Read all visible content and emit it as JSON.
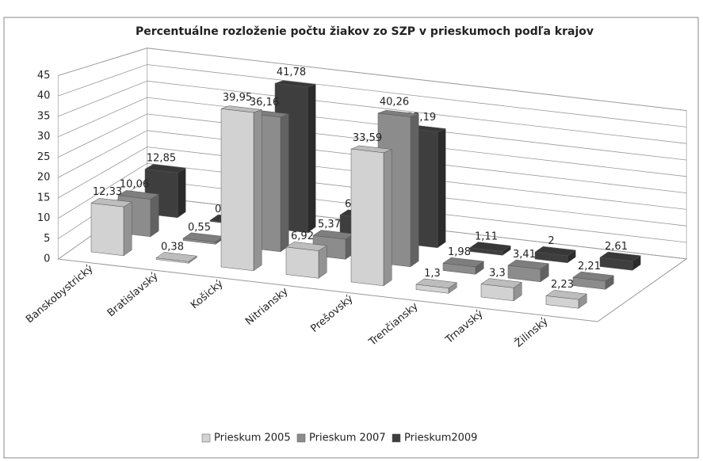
{
  "chart_data": {
    "type": "bar3d",
    "title": "Percentuálne rozloženie počtu žiakov zo SZP v prieskumoch podľa krajov",
    "categories": [
      "Banskobystrický",
      "Bratislavský",
      "Košický",
      "Nitriansky",
      "Prešovský",
      "Trenčiansky",
      "Trnavský",
      "Žilinský"
    ],
    "series": [
      {
        "name": "Prieskum 2005",
        "color": "#d2d2d2",
        "values": [
          12.33,
          0.38,
          39.95,
          6.92,
          33.59,
          1.3,
          3.3,
          2.23
        ],
        "value_labels": [
          "12,33",
          "0,38",
          "39,95",
          "6,92",
          "33,59",
          "1,3",
          "3,3",
          "2,23"
        ]
      },
      {
        "name": "Prieskum 2007",
        "color": "#8c8c8c",
        "values": [
          10.06,
          0.55,
          36.16,
          5.37,
          40.26,
          1.98,
          3.41,
          2.21
        ],
        "value_labels": [
          "10,06",
          "0,55",
          "36,16",
          "5,37",
          "40,26",
          "1,98",
          "3,41",
          "2,21"
        ]
      },
      {
        "name": "Prieskum2009",
        "color": "#3e3e3e",
        "values": [
          12.85,
          0.29,
          41.78,
          6.16,
          33.19,
          1.11,
          2,
          2.61
        ],
        "value_labels": [
          "12,85",
          "0,29",
          "41,78",
          "6,16",
          "33,19",
          "1,11",
          "2",
          "2,61"
        ]
      }
    ],
    "ylim": [
      0,
      45
    ],
    "yticks": [
      0,
      5,
      10,
      15,
      20,
      25,
      30,
      35,
      40,
      45
    ],
    "grid": true,
    "legend": "bottom"
  }
}
